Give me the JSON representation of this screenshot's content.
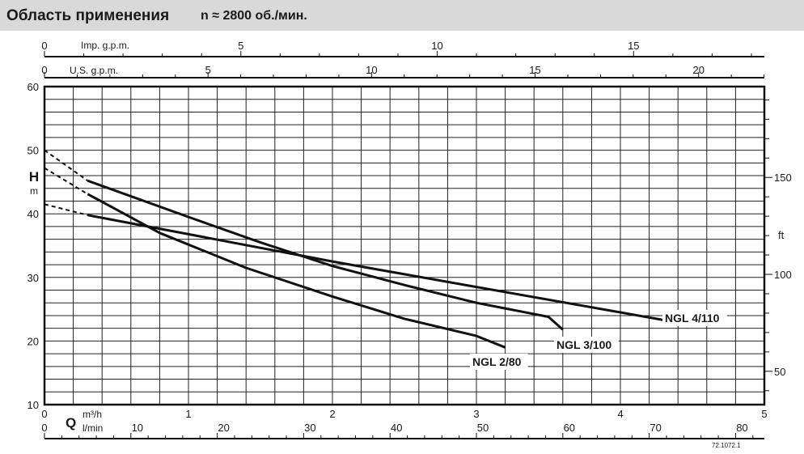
{
  "header": {
    "title": "Область применения",
    "speed": "n ≈ 2800 об./мин."
  },
  "chart_data": {
    "type": "line",
    "title": "Область применения",
    "subtitle": "n ≈ 2800 об./мин.",
    "xlabel": "Q",
    "x_units": [
      "m³/h",
      "l/min"
    ],
    "ylabel": "H",
    "y_unit": "m",
    "y2_unit": "ft",
    "xlim_m3h": [
      0,
      5
    ],
    "ylim_m": [
      10,
      60
    ],
    "grid": true,
    "axes": {
      "imp_gpm": {
        "label": "Imp. g.p.m.",
        "ticks": [
          "0",
          "5",
          "10",
          "15"
        ],
        "values": [
          0,
          5,
          10,
          15
        ],
        "max": 18.33
      },
      "us_gpm": {
        "label": "U.S. g.p.m.",
        "ticks": [
          "0",
          "5",
          "10",
          "15",
          "20"
        ],
        "values": [
          0,
          5,
          10,
          15,
          20
        ],
        "max": 22.01
      },
      "m3h": {
        "label": "m³/h",
        "ticks": [
          "0",
          "1",
          "2",
          "3",
          "4",
          "5"
        ],
        "values": [
          0,
          1,
          2,
          3,
          4,
          5
        ],
        "max": 5
      },
      "lmin": {
        "label": "l/min",
        "ticks": [
          "0",
          "10",
          "20",
          "30",
          "40",
          "50",
          "60",
          "70",
          "80"
        ],
        "values": [
          0,
          10,
          20,
          30,
          40,
          50,
          60,
          70,
          80
        ],
        "max": 83.33
      },
      "h_m": {
        "ticks": [
          "10",
          "20",
          "30",
          "40",
          "50",
          "60"
        ],
        "values": [
          10,
          20,
          30,
          40,
          50,
          60
        ]
      },
      "h_ft": {
        "ticks": [
          "50",
          "100",
          "150"
        ],
        "values": [
          50,
          100,
          150
        ]
      }
    },
    "series": [
      {
        "name": "NGL 2/80",
        "dashed": [
          [
            0.0,
            47.2
          ],
          [
            0.3,
            43.1
          ]
        ],
        "values": [
          [
            0.3,
            43.1
          ],
          [
            0.8,
            37.0
          ],
          [
            1.4,
            31.5
          ],
          [
            2.0,
            27.0
          ],
          [
            2.5,
            23.5
          ],
          [
            3.0,
            20.8
          ],
          [
            3.2,
            19.0
          ]
        ]
      },
      {
        "name": "NGL 3/100",
        "dashed": [
          [
            0.0,
            50.0
          ],
          [
            0.3,
            45.2
          ]
        ],
        "values": [
          [
            0.3,
            45.2
          ],
          [
            1.0,
            39.5
          ],
          [
            1.5,
            35.5
          ],
          [
            2.0,
            31.8
          ],
          [
            2.5,
            28.8
          ],
          [
            3.0,
            26.0
          ],
          [
            3.5,
            23.8
          ],
          [
            3.6,
            21.8
          ]
        ]
      },
      {
        "name": "NGL 4/110",
        "dashed": [
          [
            0.0,
            41.5
          ],
          [
            0.3,
            39.8
          ]
        ],
        "values": [
          [
            0.3,
            39.8
          ],
          [
            1.0,
            36.8
          ],
          [
            2.0,
            32.5
          ],
          [
            3.0,
            28.5
          ],
          [
            4.0,
            24.5
          ],
          [
            4.5,
            22.5
          ]
        ]
      }
    ],
    "annotations": [
      "72.1072.1"
    ]
  }
}
